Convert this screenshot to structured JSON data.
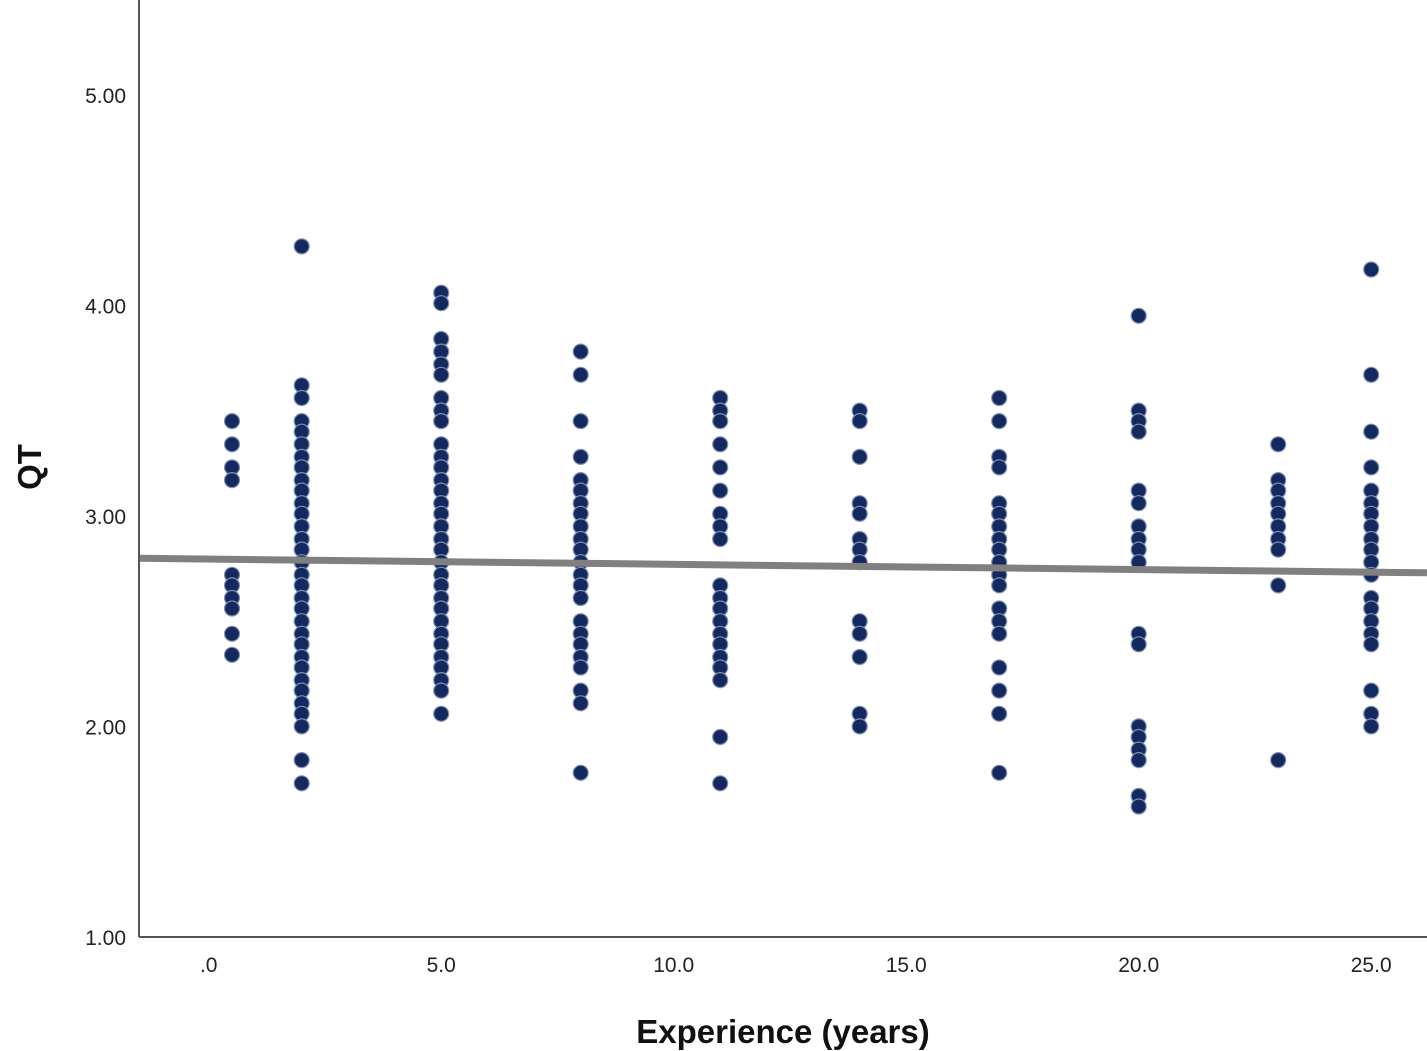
{
  "chart_data": {
    "type": "scatter",
    "xlabel": "Experience (years)",
    "ylabel": "QT",
    "xlim": [
      -1.5,
      26.2
    ],
    "ylim": [
      1.0,
      5.45
    ],
    "x_ticks": [
      ".0",
      "5.0",
      "10.0",
      "15.0",
      "20.0",
      "25.0"
    ],
    "x_tick_values": [
      0,
      5,
      10,
      15,
      20,
      25
    ],
    "y_ticks": [
      "1.00",
      "2.00",
      "3.00",
      "4.00",
      "5.00"
    ],
    "y_tick_values": [
      1,
      2,
      3,
      4,
      5
    ],
    "grid": false,
    "point_color": "#14295e",
    "point_edge": "#7f8fb5",
    "fit_line_color": "#808080",
    "fit_line": {
      "type": "linear",
      "slope": -0.0025,
      "intercept": 2.795
    },
    "series": [
      {
        "groups": [
          {
            "x": 0.5,
            "y": [
              3.45,
              3.34,
              3.23,
              3.17,
              2.72,
              2.67,
              2.61,
              2.56,
              2.44,
              2.34
            ]
          },
          {
            "x": 2,
            "y": [
              4.28,
              3.62,
              3.56,
              3.45,
              3.4,
              3.34,
              3.28,
              3.23,
              3.17,
              3.12,
              3.06,
              3.01,
              2.95,
              2.89,
              2.84,
              2.78,
              2.72,
              2.67,
              2.61,
              2.56,
              2.5,
              2.44,
              2.39,
              2.33,
              2.28,
              2.22,
              2.17,
              2.11,
              2.06,
              2.0,
              1.84,
              1.73
            ]
          },
          {
            "x": 5,
            "y": [
              4.06,
              4.01,
              3.84,
              3.78,
              3.72,
              3.67,
              3.56,
              3.5,
              3.45,
              3.34,
              3.28,
              3.23,
              3.17,
              3.12,
              3.06,
              3.01,
              2.95,
              2.89,
              2.84,
              2.78,
              2.72,
              2.67,
              2.61,
              2.56,
              2.5,
              2.44,
              2.39,
              2.33,
              2.28,
              2.22,
              2.17,
              2.06
            ]
          },
          {
            "x": 8,
            "y": [
              3.78,
              3.67,
              3.45,
              3.28,
              3.17,
              3.12,
              3.06,
              3.01,
              2.95,
              2.89,
              2.84,
              2.78,
              2.72,
              2.67,
              2.61,
              2.5,
              2.44,
              2.39,
              2.33,
              2.28,
              2.17,
              2.11,
              1.78
            ]
          },
          {
            "x": 11,
            "y": [
              3.56,
              3.5,
              3.45,
              3.34,
              3.23,
              3.12,
              3.01,
              2.95,
              2.89,
              2.67,
              2.61,
              2.56,
              2.5,
              2.44,
              2.39,
              2.33,
              2.28,
              2.22,
              1.95,
              1.73
            ]
          },
          {
            "x": 14,
            "y": [
              3.5,
              3.45,
              3.28,
              3.06,
              3.01,
              2.89,
              2.84,
              2.78,
              2.5,
              2.44,
              2.33,
              2.06,
              2.0
            ]
          },
          {
            "x": 17,
            "y": [
              3.56,
              3.45,
              3.28,
              3.23,
              3.06,
              3.01,
              2.95,
              2.89,
              2.84,
              2.78,
              2.72,
              2.67,
              2.56,
              2.5,
              2.44,
              2.28,
              2.17,
              2.06,
              1.78
            ]
          },
          {
            "x": 20,
            "y": [
              3.95,
              3.5,
              3.45,
              3.4,
              3.12,
              3.06,
              2.95,
              2.89,
              2.84,
              2.78,
              2.44,
              2.39,
              2.0,
              1.95,
              1.89,
              1.84,
              1.67,
              1.62
            ]
          },
          {
            "x": 23,
            "y": [
              3.34,
              3.17,
              3.12,
              3.06,
              3.01,
              2.95,
              2.89,
              2.84,
              2.67,
              1.84
            ]
          },
          {
            "x": 25,
            "y": [
              4.17,
              3.67,
              3.4,
              3.23,
              3.12,
              3.06,
              3.01,
              2.95,
              2.89,
              2.84,
              2.78,
              2.72,
              2.61,
              2.56,
              2.5,
              2.44,
              2.39,
              2.17,
              2.06,
              2.0
            ]
          }
        ]
      }
    ]
  }
}
